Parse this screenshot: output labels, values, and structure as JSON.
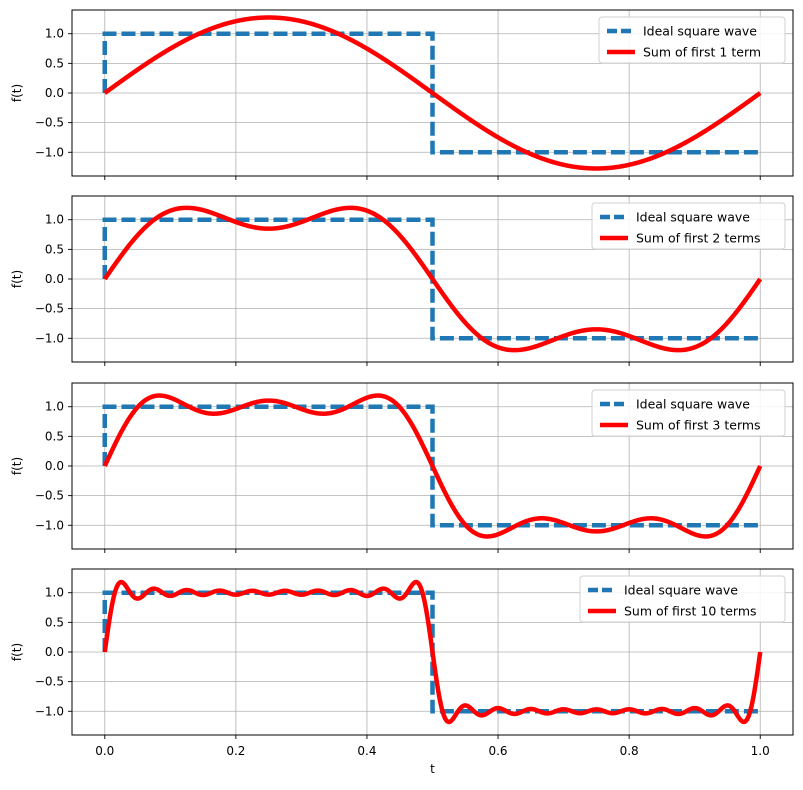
{
  "figure": {
    "xlabel": "t"
  },
  "chart_data": [
    {
      "type": "line",
      "ylabel": "f(t)",
      "xlim": [
        -0.05,
        1.05
      ],
      "ylim": [
        -1.4,
        1.4
      ],
      "x_ticks": [
        0.0,
        0.2,
        0.4,
        0.6,
        0.8,
        1.0
      ],
      "y_ticks": [
        -1.0,
        -0.5,
        0.0,
        0.5,
        1.0
      ],
      "show_x_tick_labels": false,
      "grid": true,
      "legend_position": "top-right",
      "series": [
        {
          "name": "Ideal square wave",
          "kind": "square",
          "x": [
            0,
            0,
            0.5,
            0.5,
            1.0
          ],
          "y": [
            0,
            1,
            1,
            -1,
            -1
          ],
          "color": "#1f77b4",
          "style": "dashed"
        },
        {
          "name": "Sum of first 1 term",
          "kind": "fourier_partial_sum",
          "n_terms": 1,
          "x_range": [
            0,
            1
          ],
          "color": "#ff0000",
          "style": "solid"
        }
      ]
    },
    {
      "type": "line",
      "ylabel": "f(t)",
      "xlim": [
        -0.05,
        1.05
      ],
      "ylim": [
        -1.4,
        1.4
      ],
      "x_ticks": [
        0.0,
        0.2,
        0.4,
        0.6,
        0.8,
        1.0
      ],
      "y_ticks": [
        -1.0,
        -0.5,
        0.0,
        0.5,
        1.0
      ],
      "show_x_tick_labels": false,
      "grid": true,
      "legend_position": "top-right",
      "series": [
        {
          "name": "Ideal square wave",
          "kind": "square",
          "x": [
            0,
            0,
            0.5,
            0.5,
            1.0
          ],
          "y": [
            0,
            1,
            1,
            -1,
            -1
          ],
          "color": "#1f77b4",
          "style": "dashed"
        },
        {
          "name": "Sum of first 2 terms",
          "kind": "fourier_partial_sum",
          "n_terms": 2,
          "x_range": [
            0,
            1
          ],
          "color": "#ff0000",
          "style": "solid"
        }
      ]
    },
    {
      "type": "line",
      "ylabel": "f(t)",
      "xlim": [
        -0.05,
        1.05
      ],
      "ylim": [
        -1.4,
        1.4
      ],
      "x_ticks": [
        0.0,
        0.2,
        0.4,
        0.6,
        0.8,
        1.0
      ],
      "y_ticks": [
        -1.0,
        -0.5,
        0.0,
        0.5,
        1.0
      ],
      "show_x_tick_labels": false,
      "grid": true,
      "legend_position": "top-right",
      "series": [
        {
          "name": "Ideal square wave",
          "kind": "square",
          "x": [
            0,
            0,
            0.5,
            0.5,
            1.0
          ],
          "y": [
            0,
            1,
            1,
            -1,
            -1
          ],
          "color": "#1f77b4",
          "style": "dashed"
        },
        {
          "name": "Sum of first 3 terms",
          "kind": "fourier_partial_sum",
          "n_terms": 3,
          "x_range": [
            0,
            1
          ],
          "color": "#ff0000",
          "style": "solid"
        }
      ]
    },
    {
      "type": "line",
      "ylabel": "f(t)",
      "xlabel": "t",
      "xlim": [
        -0.05,
        1.05
      ],
      "ylim": [
        -1.4,
        1.4
      ],
      "x_ticks": [
        0.0,
        0.2,
        0.4,
        0.6,
        0.8,
        1.0
      ],
      "x_tick_labels": [
        "0.0",
        "0.2",
        "0.4",
        "0.6",
        "0.8",
        "1.0"
      ],
      "y_ticks": [
        -1.0,
        -0.5,
        0.0,
        0.5,
        1.0
      ],
      "show_x_tick_labels": true,
      "grid": true,
      "legend_position": "top-right",
      "series": [
        {
          "name": "Ideal square wave",
          "kind": "square",
          "x": [
            0,
            0,
            0.5,
            0.5,
            1.0
          ],
          "y": [
            0,
            1,
            1,
            -1,
            -1
          ],
          "color": "#1f77b4",
          "style": "dashed"
        },
        {
          "name": "Sum of first 10 terms",
          "kind": "fourier_partial_sum",
          "n_terms": 10,
          "x_range": [
            0,
            1
          ],
          "color": "#ff0000",
          "style": "solid"
        }
      ]
    }
  ],
  "y_tick_labels": [
    "−1.0",
    "−0.5",
    "0.0",
    "0.5",
    "1.0"
  ]
}
